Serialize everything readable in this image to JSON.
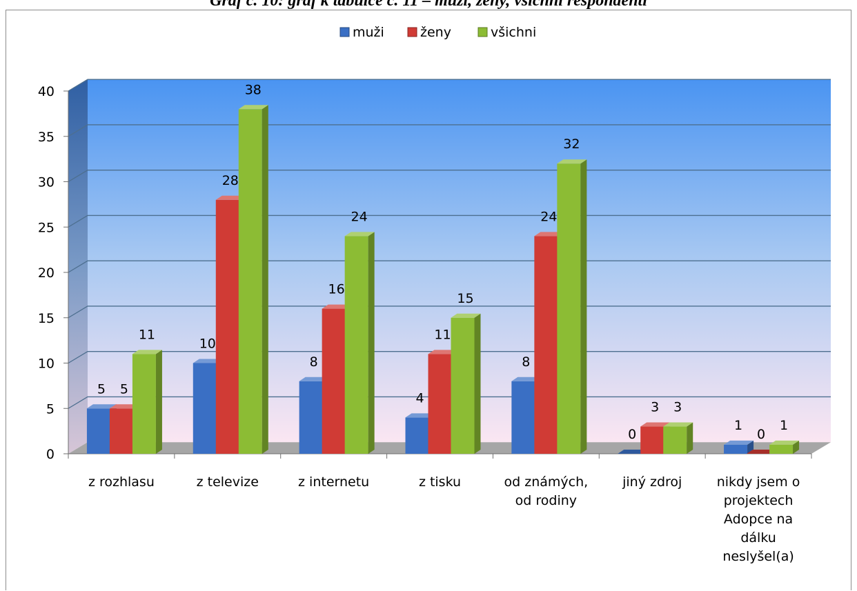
{
  "caption": "Graf č. 10: graf k tabulce č. 11 – muži, ženy, všichni respondenti",
  "chart_data": {
    "type": "bar",
    "title": "",
    "xlabel": "",
    "ylabel": "",
    "ylim": [
      0,
      40
    ],
    "yticks": [
      "0",
      "5",
      "10",
      "15",
      "20",
      "25",
      "30",
      "35",
      "40"
    ],
    "grid": true,
    "legend_position": "top",
    "categories": [
      [
        "z rozhlasu"
      ],
      [
        "z televize"
      ],
      [
        "z internetu"
      ],
      [
        "z tisku"
      ],
      [
        "od známých,",
        "od rodiny"
      ],
      [
        "jiný zdroj"
      ],
      [
        "nikdy jsem o",
        "projektech",
        "Adopce na",
        "dálku",
        "neslyšel(a)"
      ]
    ],
    "series": [
      {
        "name": "muži",
        "color": "#3a6fc4",
        "values": [
          5,
          10,
          8,
          4,
          8,
          0,
          1
        ]
      },
      {
        "name": "ženy",
        "color": "#d03b35",
        "values": [
          5,
          28,
          16,
          11,
          24,
          3,
          0
        ]
      },
      {
        "name": "všichni",
        "color": "#8cbc34",
        "values": [
          11,
          38,
          24,
          15,
          32,
          3,
          1
        ]
      }
    ]
  }
}
